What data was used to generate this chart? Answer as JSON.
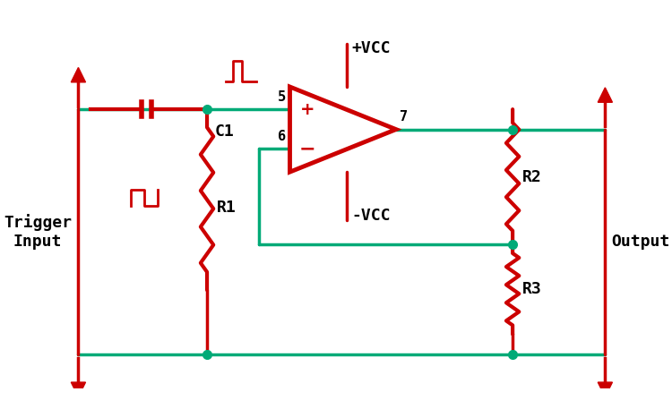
{
  "bg_color": "#ffffff",
  "wire_color": "#00aa77",
  "component_color": "#cc0000",
  "text_color": "#000000",
  "dot_color": "#00aa77",
  "line_width": 2.5,
  "component_lw": 3.0,
  "fig_width": 7.5,
  "fig_height": 4.57,
  "dpi": 100,
  "labels": {
    "trigger_input": "Trigger\nInput",
    "output": "Output",
    "c1": "C1",
    "r1": "R1",
    "r2": "R2",
    "r3": "R3",
    "vcc_pos": "+VCC",
    "vcc_neg": "-VCC",
    "pin5": "5",
    "pin6": "6",
    "pin7": "7",
    "plus": "+",
    "minus": "−"
  }
}
